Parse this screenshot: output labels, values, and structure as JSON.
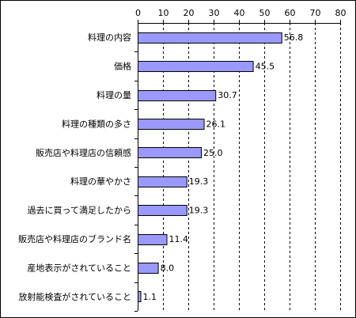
{
  "chart_data": {
    "type": "bar",
    "orientation": "horizontal",
    "categories": [
      "料理の内容",
      "価格",
      "料理の量",
      "料理の種類の多さ",
      "販売店や料理店の信頼感",
      "料理の華やかさ",
      "過去に買って満足したから",
      "販売店や料理店のブランド名",
      "産地表示がされていること",
      "放射能検査がされていること"
    ],
    "values": [
      56.8,
      45.5,
      30.7,
      26.1,
      25.0,
      19.3,
      19.3,
      11.4,
      8.0,
      1.1
    ],
    "value_labels": [
      "56.8",
      "45.5",
      "30.7",
      "26.1",
      "25.0",
      "19.3",
      "19.3",
      "11.4",
      "8.0",
      "1.1"
    ],
    "xlim": [
      0,
      80
    ],
    "x_ticks": [
      0,
      10,
      20,
      30,
      40,
      50,
      60,
      70,
      80
    ],
    "x_axis_position": "top",
    "grid": "vertical-dashed",
    "legend": "none",
    "bar_color": "#9999ff",
    "bar_border_color": "#000000"
  }
}
